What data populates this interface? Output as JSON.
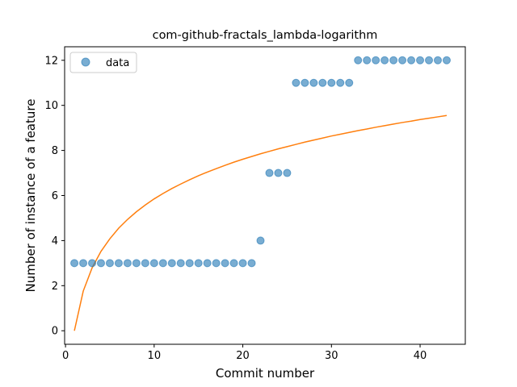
{
  "chart_data": {
    "type": "scatter",
    "title": "com-github-fractals_lambda-logarithm",
    "xlabel": "Commit number",
    "ylabel": "Number of instance of a feature",
    "xlim": [
      -0.1,
      45.1
    ],
    "ylim": [
      -0.6,
      12.6
    ],
    "xticks": [
      0,
      10,
      20,
      30,
      40
    ],
    "yticks": [
      0,
      2,
      4,
      6,
      8,
      10,
      12
    ],
    "grid": false,
    "legend_position": "upper-left",
    "series": [
      {
        "name": "data",
        "kind": "scatter",
        "color": "#1f77b4",
        "x": [
          1,
          2,
          3,
          4,
          5,
          6,
          7,
          8,
          9,
          10,
          11,
          12,
          13,
          14,
          15,
          16,
          17,
          18,
          19,
          20,
          21,
          22,
          23,
          24,
          25,
          26,
          27,
          28,
          29,
          30,
          31,
          32,
          33,
          34,
          35,
          36,
          37,
          38,
          39,
          40,
          41,
          42,
          43
        ],
        "y": [
          3,
          3,
          3,
          3,
          3,
          3,
          3,
          3,
          3,
          3,
          3,
          3,
          3,
          3,
          3,
          3,
          3,
          3,
          3,
          3,
          3,
          4,
          7,
          7,
          7,
          11,
          11,
          11,
          11,
          11,
          11,
          11,
          12,
          12,
          12,
          12,
          12,
          12,
          12,
          12,
          12,
          12,
          12
        ]
      },
      {
        "kind": "line",
        "color": "#ff7f0e",
        "x": [
          1,
          2,
          3,
          4,
          5,
          6,
          7,
          8,
          9,
          10,
          11,
          12,
          13,
          14,
          15,
          16,
          17,
          18,
          19,
          20,
          21,
          22,
          23,
          24,
          25,
          26,
          27,
          28,
          29,
          30,
          31,
          32,
          33,
          34,
          35,
          36,
          37,
          38,
          39,
          40,
          41,
          42,
          43
        ],
        "y": [
          0,
          1.76,
          2.79,
          3.52,
          4.08,
          4.55,
          4.94,
          5.28,
          5.58,
          5.85,
          6.09,
          6.31,
          6.51,
          6.7,
          6.88,
          7.04,
          7.19,
          7.34,
          7.48,
          7.61,
          7.73,
          7.85,
          7.96,
          8.07,
          8.17,
          8.27,
          8.37,
          8.46,
          8.55,
          8.64,
          8.72,
          8.8,
          8.88,
          8.95,
          9.03,
          9.1,
          9.17,
          9.24,
          9.3,
          9.37,
          9.43,
          9.49,
          9.55
        ]
      }
    ]
  }
}
